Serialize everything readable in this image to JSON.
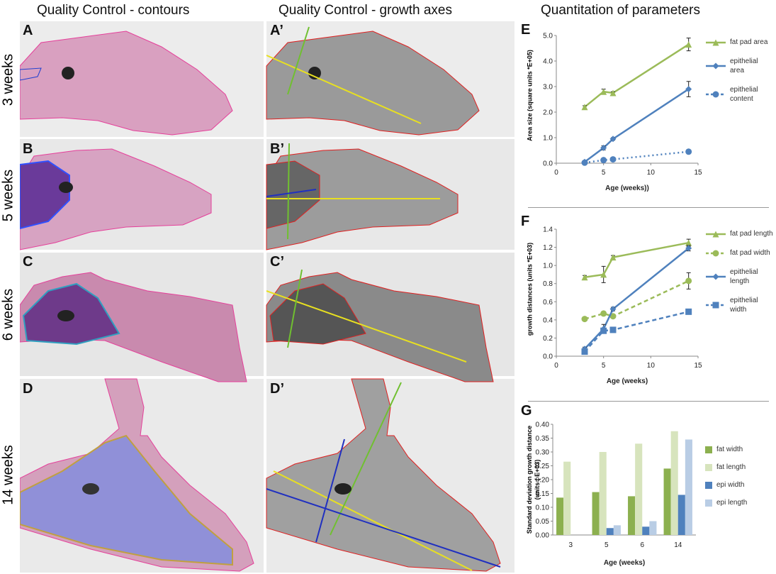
{
  "headings": [
    "Quality Control - contours",
    "Quality Control - growth axes",
    "Quantitation of parameters"
  ],
  "rows": [
    {
      "label": "3 weeks",
      "panels": [
        "A",
        "A’"
      ]
    },
    {
      "label": "5 weeks",
      "panels": [
        "B",
        "B’"
      ]
    },
    {
      "label": "6 weeks",
      "panels": [
        "C",
        "C’"
      ]
    },
    {
      "label": "14 weeks",
      "panels": [
        "D",
        "D’"
      ]
    }
  ],
  "chart_data": [
    {
      "type": "line",
      "panel": "E",
      "y_label": "Area size (square units *E+05)",
      "x_label": "Age (weeks))",
      "x": [
        3,
        5,
        6,
        14
      ],
      "xlim": [
        0,
        15
      ],
      "xticks": [
        0,
        5,
        10,
        15
      ],
      "ylim": [
        0,
        5
      ],
      "yticks": [
        {
          "value": 0,
          "label": "0.0"
        },
        {
          "value": 1,
          "label": "1.0"
        },
        {
          "value": 2,
          "label": "2.0"
        },
        {
          "value": 3,
          "label": "3.0"
        },
        {
          "value": 4,
          "label": "4.0"
        },
        {
          "value": 5,
          "label": "5.0"
        }
      ],
      "series": [
        {
          "name": "fat pad area",
          "color": "#9bbb59",
          "marker": "triangle",
          "dashed": false,
          "values": [
            2.2,
            2.8,
            2.75,
            4.65
          ],
          "errors": [
            0.05,
            0.1,
            0.05,
            0.25
          ]
        },
        {
          "name": "epithelial area",
          "color": "#4f81bd",
          "marker": "diamond",
          "dashed": false,
          "values": [
            0.05,
            0.6,
            0.95,
            2.9
          ],
          "errors": [
            0.02,
            0.08,
            0.05,
            0.3
          ]
        },
        {
          "name": "epithelial content",
          "color": "#4f81bd",
          "marker": "circle",
          "dashed": true,
          "values": [
            0.02,
            0.12,
            0.15,
            0.45
          ]
        }
      ]
    },
    {
      "type": "line",
      "panel": "F",
      "y_label": "growth distances (units *E+03)",
      "x_label": "Age (weeks)",
      "x": [
        3,
        5,
        6,
        14
      ],
      "xlim": [
        0,
        15
      ],
      "xticks": [
        0,
        5,
        10,
        15
      ],
      "ylim": [
        0,
        1.4
      ],
      "yticks": [
        {
          "value": 0,
          "label": "0.0"
        },
        {
          "value": 0.2,
          "label": "0.2"
        },
        {
          "value": 0.4,
          "label": "0.4"
        },
        {
          "value": 0.6,
          "label": "0.6"
        },
        {
          "value": 0.8,
          "label": "0.8"
        },
        {
          "value": 1,
          "label": "1.0"
        },
        {
          "value": 1.2,
          "label": "1.2"
        },
        {
          "value": 1.4,
          "label": "1.4"
        }
      ],
      "series": [
        {
          "name": "fat pad length",
          "color": "#9bbb59",
          "marker": "triangle",
          "dashed": false,
          "values": [
            0.87,
            0.9,
            1.09,
            1.25
          ],
          "errors": [
            0.02,
            0.09,
            0.02,
            0.04
          ]
        },
        {
          "name": "fat pad width",
          "color": "#9bbb59",
          "marker": "circle",
          "dashed": true,
          "values": [
            0.41,
            0.47,
            0.44,
            0.83
          ],
          "errors": [
            0.02,
            0.02,
            0.02,
            0.09
          ]
        },
        {
          "name": "epithelial length",
          "color": "#4f81bd",
          "marker": "diamond",
          "dashed": false,
          "values": [
            0.08,
            0.3,
            0.52,
            1.19
          ],
          "errors": [
            0.02,
            0.05,
            0.02,
            0.03
          ]
        },
        {
          "name": "epithelial width",
          "color": "#4f81bd",
          "marker": "square",
          "dashed": true,
          "values": [
            0.05,
            0.28,
            0.29,
            0.49
          ]
        }
      ]
    },
    {
      "type": "bar",
      "panel": "G",
      "y_label": "Standard deviation growth distance (units ( E+03)",
      "x_label": "Age (weeks)",
      "categories": [
        "3",
        "5",
        "6",
        "14"
      ],
      "ylim": [
        0,
        0.4
      ],
      "yticks": [
        {
          "value": 0,
          "label": "0.00"
        },
        {
          "value": 0.05,
          "label": "0.05"
        },
        {
          "value": 0.1,
          "label": "0.10"
        },
        {
          "value": 0.15,
          "label": "0.15"
        },
        {
          "value": 0.2,
          "label": "0.20"
        },
        {
          "value": 0.25,
          "label": "0.25"
        },
        {
          "value": 0.3,
          "label": "0.30"
        },
        {
          "value": 0.35,
          "label": "0.35"
        },
        {
          "value": 0.4,
          "label": "0.40"
        }
      ],
      "series": [
        {
          "name": "fat width",
          "color": "#8cb04f",
          "values": [
            0.135,
            0.155,
            0.14,
            0.24
          ]
        },
        {
          "name": "fat length",
          "color": "#d7e4bd",
          "values": [
            0.265,
            0.3,
            0.33,
            0.375
          ]
        },
        {
          "name": "epi width",
          "color": "#4f81bd",
          "values": [
            0,
            0.025,
            0.03,
            0.145
          ]
        },
        {
          "name": "epi length",
          "color": "#b9cde5",
          "values": [
            0,
            0.035,
            0.05,
            0.345
          ]
        }
      ]
    }
  ]
}
